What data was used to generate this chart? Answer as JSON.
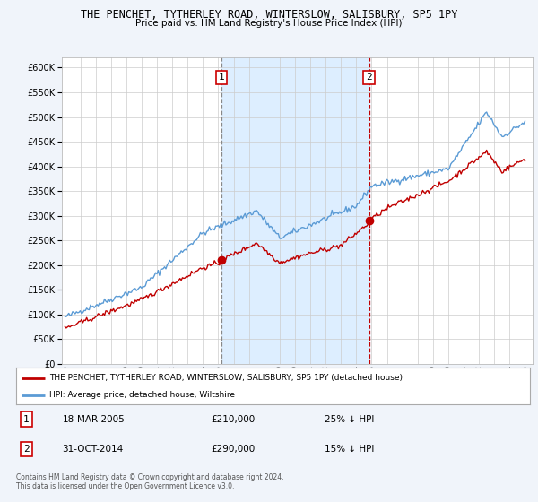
{
  "title": "THE PENCHET, TYTHERLEY ROAD, WINTERSLOW, SALISBURY, SP5 1PY",
  "subtitle": "Price paid vs. HM Land Registry's House Price Index (HPI)",
  "legend_line1": "THE PENCHET, TYTHERLEY ROAD, WINTERSLOW, SALISBURY, SP5 1PY (detached house)",
  "legend_line2": "HPI: Average price, detached house, Wiltshire",
  "annotation1_date": "18-MAR-2005",
  "annotation1_price": "£210,000",
  "annotation1_pct": "25% ↓ HPI",
  "annotation2_date": "31-OCT-2014",
  "annotation2_price": "£290,000",
  "annotation2_pct": "15% ↓ HPI",
  "footer": "Contains HM Land Registry data © Crown copyright and database right 2024.\nThis data is licensed under the Open Government Licence v3.0.",
  "hpi_color": "#5b9bd5",
  "price_color": "#c00000",
  "vline1_color": "#888888",
  "vline2_color": "#c00000",
  "shade_color": "#ddeeff",
  "background_color": "#f0f4fa",
  "plot_bg_color": "#ffffff",
  "legend_bg": "#ffffff",
  "ylim": [
    0,
    620000
  ],
  "yticks": [
    0,
    50000,
    100000,
    150000,
    200000,
    250000,
    300000,
    350000,
    400000,
    450000,
    500000,
    550000,
    600000
  ],
  "sale1_x": 2005.21,
  "sale1_y": 210000,
  "sale2_x": 2014.83,
  "sale2_y": 290000,
  "xlim_left": 1994.8,
  "xlim_right": 2025.5
}
